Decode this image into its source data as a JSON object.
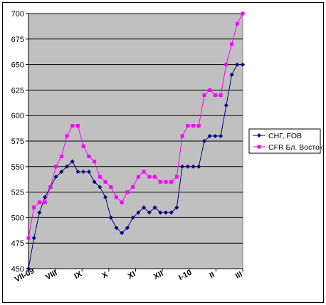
{
  "chart_data": {
    "type": "line",
    "title": "",
    "xlabel": "",
    "ylabel": "",
    "ylim": [
      450,
      700
    ],
    "y_ticks": [
      450,
      475,
      500,
      525,
      550,
      575,
      600,
      625,
      650,
      675,
      700
    ],
    "x_tick_labels": [
      "VII-09",
      "VIII",
      "IX",
      "X",
      "XI",
      "XII",
      "I-10",
      "II",
      "III"
    ],
    "grid": "horizontal",
    "plot_background": "#c0c0c0",
    "legend_position": "right",
    "series": [
      {
        "name": "СНГ, FOB",
        "color": "#000080",
        "marker": "diamond",
        "values": [
          450,
          480,
          505,
          520,
          530,
          540,
          545,
          550,
          555,
          545,
          545,
          545,
          535,
          530,
          520,
          500,
          490,
          485,
          490,
          500,
          505,
          510,
          505,
          510,
          505,
          505,
          505,
          510,
          550,
          550,
          550,
          550,
          575,
          580,
          580,
          580,
          610,
          640,
          650,
          650
        ]
      },
      {
        "name": "CFR Бл. Восток",
        "color": "#ff00ff",
        "marker": "square",
        "values": [
          480,
          510,
          515,
          515,
          530,
          550,
          560,
          580,
          590,
          590,
          570,
          560,
          555,
          540,
          535,
          530,
          520,
          515,
          525,
          530,
          540,
          545,
          540,
          540,
          535,
          535,
          535,
          540,
          580,
          590,
          590,
          590,
          620,
          625,
          620,
          620,
          650,
          670,
          690,
          700
        ]
      }
    ]
  }
}
